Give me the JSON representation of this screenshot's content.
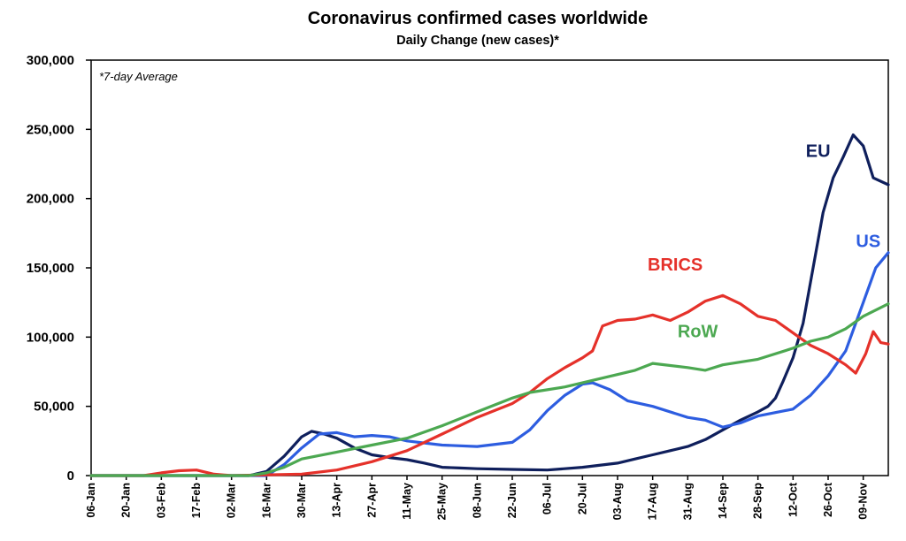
{
  "chart_data": {
    "type": "line",
    "title": "Coronavirus confirmed cases worldwide",
    "subtitle": "Daily Change (new cases)*",
    "annotation": "*7-day Average",
    "xlabel": "",
    "ylabel": "",
    "ylim": [
      0,
      300000
    ],
    "yticks": [
      0,
      50000,
      100000,
      150000,
      200000,
      250000,
      300000
    ],
    "ytick_labels": [
      "0",
      "50,000",
      "100,000",
      "150,000",
      "200,000",
      "250,000",
      "300,000"
    ],
    "x_range": [
      "2020-01-06",
      "2020-11-19"
    ],
    "xtick_labels": [
      "06-Jan",
      "20-Jan",
      "03-Feb",
      "17-Feb",
      "02-Mar",
      "16-Mar",
      "30-Mar",
      "13-Apr",
      "27-Apr",
      "11-May",
      "25-May",
      "08-Jun",
      "22-Jun",
      "06-Jul",
      "20-Jul",
      "03-Aug",
      "17-Aug",
      "31-Aug",
      "14-Sep",
      "28-Sep",
      "12-Oct",
      "26-Oct",
      "09-Nov"
    ],
    "xtick_dates": [
      "2020-01-06",
      "2020-01-20",
      "2020-02-03",
      "2020-02-17",
      "2020-03-02",
      "2020-03-16",
      "2020-03-30",
      "2020-04-13",
      "2020-04-27",
      "2020-05-11",
      "2020-05-25",
      "2020-06-08",
      "2020-06-22",
      "2020-07-06",
      "2020-07-20",
      "2020-08-03",
      "2020-08-17",
      "2020-08-31",
      "2020-09-14",
      "2020-09-28",
      "2020-10-12",
      "2020-10-26",
      "2020-11-09"
    ],
    "grid": false,
    "legend": "inline labels",
    "series": [
      {
        "name": "EU",
        "color": "#0f1f5c",
        "label_anchor": [
          "2020-10-22",
          230000
        ],
        "points": [
          [
            "2020-01-06",
            0
          ],
          [
            "2020-03-09",
            0
          ],
          [
            "2020-03-16",
            3000
          ],
          [
            "2020-03-23",
            14000
          ],
          [
            "2020-03-30",
            28000
          ],
          [
            "2020-04-03",
            32000
          ],
          [
            "2020-04-08",
            30000
          ],
          [
            "2020-04-13",
            27000
          ],
          [
            "2020-04-20",
            20000
          ],
          [
            "2020-04-27",
            15000
          ],
          [
            "2020-05-04",
            13000
          ],
          [
            "2020-05-11",
            11500
          ],
          [
            "2020-05-18",
            9000
          ],
          [
            "2020-05-25",
            6000
          ],
          [
            "2020-06-01",
            5500
          ],
          [
            "2020-06-08",
            5000
          ],
          [
            "2020-06-22",
            4500
          ],
          [
            "2020-07-06",
            4000
          ],
          [
            "2020-07-20",
            6000
          ],
          [
            "2020-08-03",
            9000
          ],
          [
            "2020-08-10",
            12000
          ],
          [
            "2020-08-17",
            15000
          ],
          [
            "2020-08-24",
            18000
          ],
          [
            "2020-08-31",
            21000
          ],
          [
            "2020-09-07",
            26000
          ],
          [
            "2020-09-14",
            33000
          ],
          [
            "2020-09-21",
            40000
          ],
          [
            "2020-09-28",
            46000
          ],
          [
            "2020-10-02",
            50000
          ],
          [
            "2020-10-05",
            56000
          ],
          [
            "2020-10-08",
            68000
          ],
          [
            "2020-10-12",
            85000
          ],
          [
            "2020-10-16",
            110000
          ],
          [
            "2020-10-20",
            150000
          ],
          [
            "2020-10-24",
            190000
          ],
          [
            "2020-10-28",
            215000
          ],
          [
            "2020-11-01",
            230000
          ],
          [
            "2020-11-05",
            246000
          ],
          [
            "2020-11-09",
            238000
          ],
          [
            "2020-11-13",
            215000
          ],
          [
            "2020-11-19",
            210000
          ]
        ]
      },
      {
        "name": "US",
        "color": "#2d5de0",
        "label_anchor": [
          "2020-11-11",
          165000
        ],
        "points": [
          [
            "2020-01-06",
            0
          ],
          [
            "2020-03-16",
            0
          ],
          [
            "2020-03-23",
            8000
          ],
          [
            "2020-03-30",
            20000
          ],
          [
            "2020-04-06",
            30000
          ],
          [
            "2020-04-13",
            31000
          ],
          [
            "2020-04-20",
            28000
          ],
          [
            "2020-04-27",
            29000
          ],
          [
            "2020-05-04",
            28000
          ],
          [
            "2020-05-11",
            25000
          ],
          [
            "2020-05-25",
            22000
          ],
          [
            "2020-06-08",
            21000
          ],
          [
            "2020-06-22",
            24000
          ],
          [
            "2020-06-29",
            33000
          ],
          [
            "2020-07-06",
            47000
          ],
          [
            "2020-07-13",
            58000
          ],
          [
            "2020-07-20",
            66000
          ],
          [
            "2020-07-24",
            67000
          ],
          [
            "2020-07-31",
            62000
          ],
          [
            "2020-08-07",
            54000
          ],
          [
            "2020-08-17",
            50000
          ],
          [
            "2020-08-31",
            42000
          ],
          [
            "2020-09-07",
            40000
          ],
          [
            "2020-09-14",
            35000
          ],
          [
            "2020-09-21",
            38000
          ],
          [
            "2020-09-28",
            43000
          ],
          [
            "2020-10-12",
            48000
          ],
          [
            "2020-10-19",
            58000
          ],
          [
            "2020-10-26",
            72000
          ],
          [
            "2020-11-02",
            90000
          ],
          [
            "2020-11-09",
            125000
          ],
          [
            "2020-11-14",
            150000
          ],
          [
            "2020-11-19",
            161000
          ]
        ]
      },
      {
        "name": "BRICS",
        "color": "#e5312a",
        "label_anchor": [
          "2020-08-26",
          148000
        ],
        "points": [
          [
            "2020-01-06",
            0
          ],
          [
            "2020-01-27",
            0
          ],
          [
            "2020-02-03",
            2000
          ],
          [
            "2020-02-10",
            3500
          ],
          [
            "2020-02-17",
            4000
          ],
          [
            "2020-02-24",
            1000
          ],
          [
            "2020-03-02",
            0
          ],
          [
            "2020-03-30",
            1000
          ],
          [
            "2020-04-13",
            4000
          ],
          [
            "2020-04-27",
            10000
          ],
          [
            "2020-05-11",
            18000
          ],
          [
            "2020-05-25",
            30000
          ],
          [
            "2020-06-08",
            42000
          ],
          [
            "2020-06-22",
            52000
          ],
          [
            "2020-06-29",
            60000
          ],
          [
            "2020-07-06",
            70000
          ],
          [
            "2020-07-13",
            78000
          ],
          [
            "2020-07-20",
            85000
          ],
          [
            "2020-07-24",
            90000
          ],
          [
            "2020-07-28",
            108000
          ],
          [
            "2020-08-03",
            112000
          ],
          [
            "2020-08-10",
            113000
          ],
          [
            "2020-08-17",
            116000
          ],
          [
            "2020-08-24",
            112000
          ],
          [
            "2020-08-31",
            118000
          ],
          [
            "2020-09-07",
            126000
          ],
          [
            "2020-09-14",
            130000
          ],
          [
            "2020-09-21",
            124000
          ],
          [
            "2020-09-28",
            115000
          ],
          [
            "2020-10-05",
            112000
          ],
          [
            "2020-10-12",
            103000
          ],
          [
            "2020-10-19",
            94000
          ],
          [
            "2020-10-26",
            88000
          ],
          [
            "2020-11-02",
            80000
          ],
          [
            "2020-11-06",
            74000
          ],
          [
            "2020-11-10",
            88000
          ],
          [
            "2020-11-13",
            104000
          ],
          [
            "2020-11-16",
            96000
          ],
          [
            "2020-11-19",
            95000
          ]
        ]
      },
      {
        "name": "RoW",
        "color": "#4ca851",
        "label_anchor": [
          "2020-09-04",
          100000
        ],
        "points": [
          [
            "2020-01-06",
            0
          ],
          [
            "2020-03-09",
            0
          ],
          [
            "2020-03-16",
            2000
          ],
          [
            "2020-03-23",
            6000
          ],
          [
            "2020-03-30",
            12000
          ],
          [
            "2020-04-13",
            17000
          ],
          [
            "2020-04-27",
            22000
          ],
          [
            "2020-05-11",
            27000
          ],
          [
            "2020-05-25",
            36000
          ],
          [
            "2020-06-08",
            46000
          ],
          [
            "2020-06-22",
            56000
          ],
          [
            "2020-06-29",
            60000
          ],
          [
            "2020-07-13",
            64000
          ],
          [
            "2020-07-27",
            70000
          ],
          [
            "2020-08-10",
            76000
          ],
          [
            "2020-08-17",
            81000
          ],
          [
            "2020-08-31",
            78000
          ],
          [
            "2020-09-07",
            76000
          ],
          [
            "2020-09-14",
            80000
          ],
          [
            "2020-09-28",
            84000
          ],
          [
            "2020-10-12",
            92000
          ],
          [
            "2020-10-19",
            97000
          ],
          [
            "2020-10-26",
            100000
          ],
          [
            "2020-11-02",
            106000
          ],
          [
            "2020-11-09",
            115000
          ],
          [
            "2020-11-19",
            124000
          ]
        ]
      }
    ]
  }
}
